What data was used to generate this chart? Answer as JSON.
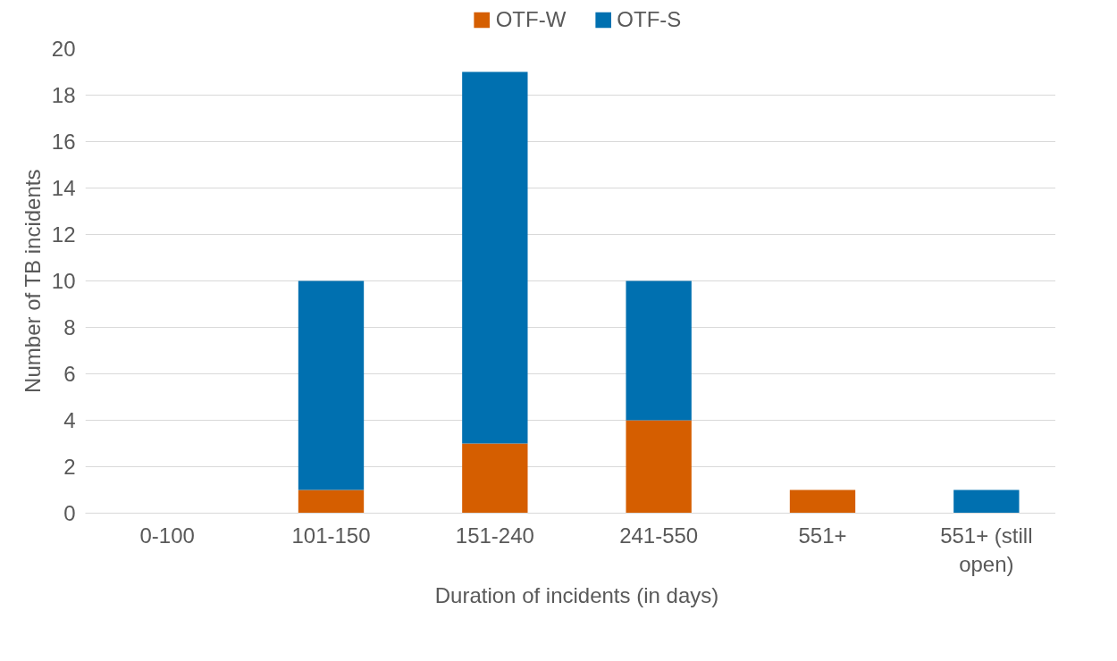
{
  "chart_data": {
    "type": "bar",
    "stacked": true,
    "xlabel": "Duration of incidents (in days)",
    "ylabel": "Number of TB incidents",
    "categories": [
      "0-100",
      "101-150",
      "151-240",
      "241-550",
      "551+",
      "551+ (still open)"
    ],
    "series": [
      {
        "name": "OTF-W",
        "color": "#d55e00",
        "values": [
          0,
          1,
          3,
          4,
          1,
          0
        ]
      },
      {
        "name": "OTF-S",
        "color": "#0070b0",
        "values": [
          0,
          9,
          16,
          6,
          0,
          1
        ]
      }
    ],
    "ylim": [
      0,
      20
    ],
    "yticks": [
      0,
      2,
      4,
      6,
      8,
      10,
      12,
      14,
      16,
      18,
      20
    ],
    "grid": "y",
    "legend": "top"
  }
}
